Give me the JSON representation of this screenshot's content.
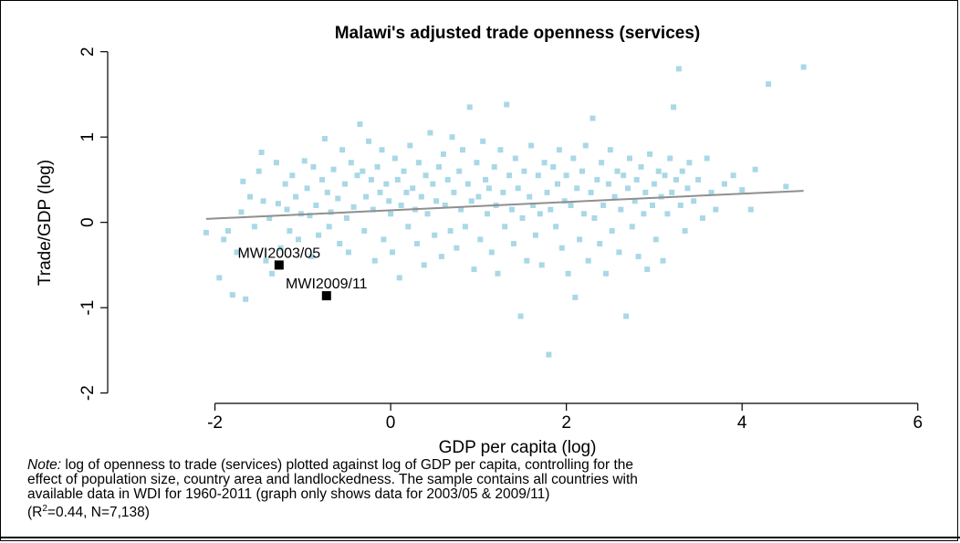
{
  "chart_data": {
    "type": "scatter",
    "title": "Malawi's adjusted trade openness (services)",
    "xlabel": "GDP per capita (log)",
    "ylabel": "Trade/GDP (log)",
    "xlim": [
      -3.2,
      6.2
    ],
    "ylim": [
      -2.1,
      2.05
    ],
    "xticks": [
      -2,
      0,
      2,
      4,
      6
    ],
    "xtick_labels": [
      "-2",
      "0",
      "2",
      "4",
      "6"
    ],
    "yticks": [
      -2,
      -1,
      0,
      1,
      2
    ],
    "ytick_labels": [
      "-2",
      "-1",
      "0",
      "1",
      "2"
    ],
    "grid": false,
    "colors": {
      "points": "#a9d8e6",
      "highlight": "#000000",
      "fit_line": "#8f8f8f"
    },
    "fit_line": {
      "x": [
        -2.1,
        4.7
      ],
      "y": [
        0.04,
        0.37
      ]
    },
    "series": [
      {
        "points": [
          [
            -2.1,
            -0.12
          ],
          [
            -1.95,
            -0.65
          ],
          [
            -1.9,
            -0.2
          ],
          [
            -1.85,
            -0.1
          ],
          [
            -1.8,
            -0.85
          ],
          [
            -1.75,
            -0.35
          ],
          [
            -1.7,
            0.12
          ],
          [
            -1.68,
            0.48
          ],
          [
            -1.65,
            -0.9
          ],
          [
            -1.6,
            0.3
          ],
          [
            -1.55,
            -0.05
          ],
          [
            -1.5,
            0.6
          ],
          [
            -1.47,
            0.82
          ],
          [
            -1.45,
            0.25
          ],
          [
            -1.42,
            -0.45
          ],
          [
            -1.38,
            0.05
          ],
          [
            -1.35,
            -0.6
          ],
          [
            -1.3,
            0.7
          ],
          [
            -1.28,
            0.22
          ],
          [
            -1.25,
            -0.3
          ],
          [
            -1.2,
            0.45
          ],
          [
            -1.18,
            0.15
          ],
          [
            -1.15,
            -0.1
          ],
          [
            -1.12,
            0.55
          ],
          [
            -1.08,
            0.3
          ],
          [
            -1.05,
            -0.2
          ],
          [
            -1.02,
            0.1
          ],
          [
            -0.98,
            0.72
          ],
          [
            -0.95,
            0.4
          ],
          [
            -0.92,
            0.08
          ],
          [
            -0.9,
            -0.4
          ],
          [
            -0.88,
            0.65
          ],
          [
            -0.85,
            0.2
          ],
          [
            -0.82,
            -0.15
          ],
          [
            -0.78,
            0.5
          ],
          [
            -0.75,
            0.98
          ],
          [
            -0.72,
            0.35
          ],
          [
            -0.7,
            -0.05
          ],
          [
            -0.68,
            0.12
          ],
          [
            -0.65,
            0.62
          ],
          [
            -0.6,
            0.28
          ],
          [
            -0.58,
            -0.25
          ],
          [
            -0.55,
            0.85
          ],
          [
            -0.52,
            0.45
          ],
          [
            -0.5,
            0.05
          ],
          [
            -0.48,
            -0.35
          ],
          [
            -0.45,
            0.7
          ],
          [
            -0.42,
            0.18
          ],
          [
            -0.38,
            0.55
          ],
          [
            -0.35,
            1.15
          ],
          [
            -0.32,
            0.6
          ],
          [
            -0.3,
            -0.1
          ],
          [
            -0.28,
            0.3
          ],
          [
            -0.25,
            0.95
          ],
          [
            -0.22,
            0.5
          ],
          [
            -0.2,
            0.15
          ],
          [
            -0.18,
            -0.45
          ],
          [
            -0.15,
            0.65
          ],
          [
            -0.12,
            0.35
          ],
          [
            -0.1,
            0.85
          ],
          [
            -0.08,
            -0.2
          ],
          [
            -0.05,
            0.45
          ],
          [
            -0.02,
            0.25
          ],
          [
            0.0,
            0.1
          ],
          [
            0.02,
            -0.35
          ],
          [
            0.05,
            0.75
          ],
          [
            0.08,
            0.5
          ],
          [
            0.1,
            -0.65
          ],
          [
            0.12,
            0.2
          ],
          [
            0.15,
            0.6
          ],
          [
            0.18,
            0.35
          ],
          [
            0.2,
            -0.05
          ],
          [
            0.22,
            0.9
          ],
          [
            0.25,
            0.4
          ],
          [
            0.28,
            0.15
          ],
          [
            0.3,
            -0.25
          ],
          [
            0.32,
            0.7
          ],
          [
            0.35,
            0.3
          ],
          [
            0.38,
            -0.5
          ],
          [
            0.4,
            0.55
          ],
          [
            0.42,
            0.1
          ],
          [
            0.45,
            1.05
          ],
          [
            0.48,
            0.45
          ],
          [
            0.5,
            -0.15
          ],
          [
            0.52,
            0.25
          ],
          [
            0.55,
            0.65
          ],
          [
            0.58,
            -0.4
          ],
          [
            0.6,
            0.8
          ],
          [
            0.62,
            0.2
          ],
          [
            0.65,
            0.5
          ],
          [
            0.68,
            -0.1
          ],
          [
            0.7,
            1.0
          ],
          [
            0.72,
            0.35
          ],
          [
            0.75,
            -0.3
          ],
          [
            0.78,
            0.6
          ],
          [
            0.8,
            0.15
          ],
          [
            0.82,
            0.85
          ],
          [
            0.85,
            -0.05
          ],
          [
            0.88,
            0.45
          ],
          [
            0.9,
            1.35
          ],
          [
            0.92,
            0.25
          ],
          [
            0.95,
            -0.55
          ],
          [
            0.98,
            0.7
          ],
          [
            1.0,
            0.3
          ],
          [
            1.02,
            -0.2
          ],
          [
            1.05,
            0.95
          ],
          [
            1.08,
            0.5
          ],
          [
            1.1,
            0.1
          ],
          [
            1.12,
            0.4
          ],
          [
            1.15,
            -0.35
          ],
          [
            1.18,
            0.65
          ],
          [
            1.2,
            0.2
          ],
          [
            1.22,
            -0.6
          ],
          [
            1.25,
            0.85
          ],
          [
            1.28,
            0.35
          ],
          [
            1.3,
            -0.05
          ],
          [
            1.32,
            1.38
          ],
          [
            1.35,
            0.55
          ],
          [
            1.38,
            0.15
          ],
          [
            1.4,
            -0.25
          ],
          [
            1.42,
            0.75
          ],
          [
            1.45,
            0.4
          ],
          [
            1.48,
            -1.1
          ],
          [
            1.5,
            0.05
          ],
          [
            1.52,
            0.6
          ],
          [
            1.55,
            -0.45
          ],
          [
            1.58,
            0.3
          ],
          [
            1.6,
            0.9
          ],
          [
            1.62,
            0.2
          ],
          [
            1.65,
            -0.15
          ],
          [
            1.68,
            0.55
          ],
          [
            1.7,
            0.1
          ],
          [
            1.72,
            -0.5
          ],
          [
            1.75,
            0.7
          ],
          [
            1.78,
            0.35
          ],
          [
            1.8,
            -1.55
          ],
          [
            1.82,
            0.15
          ],
          [
            1.85,
            0.65
          ],
          [
            1.88,
            -0.05
          ],
          [
            1.9,
            0.45
          ],
          [
            1.92,
            0.85
          ],
          [
            1.95,
            -0.3
          ],
          [
            1.98,
            0.25
          ],
          [
            2.0,
            0.55
          ],
          [
            2.02,
            -0.6
          ],
          [
            2.05,
            0.2
          ],
          [
            2.08,
            0.75
          ],
          [
            2.1,
            -0.88
          ],
          [
            2.12,
            0.4
          ],
          [
            2.15,
            -0.2
          ],
          [
            2.18,
            0.6
          ],
          [
            2.2,
            0.1
          ],
          [
            2.22,
            0.9
          ],
          [
            2.25,
            -0.45
          ],
          [
            2.28,
            0.35
          ],
          [
            2.3,
            1.22
          ],
          [
            2.32,
            0.05
          ],
          [
            2.35,
            0.5
          ],
          [
            2.38,
            -0.25
          ],
          [
            2.4,
            0.7
          ],
          [
            2.42,
            0.2
          ],
          [
            2.45,
            -0.6
          ],
          [
            2.48,
            0.45
          ],
          [
            2.5,
            0.85
          ],
          [
            2.52,
            -0.1
          ],
          [
            2.55,
            0.3
          ],
          [
            2.58,
            0.6
          ],
          [
            2.6,
            -0.35
          ],
          [
            2.62,
            0.15
          ],
          [
            2.65,
            0.55
          ],
          [
            2.68,
            -1.1
          ],
          [
            2.7,
            0.4
          ],
          [
            2.72,
            0.75
          ],
          [
            2.75,
            -0.05
          ],
          [
            2.78,
            0.25
          ],
          [
            2.8,
            0.5
          ],
          [
            2.82,
            -0.4
          ],
          [
            2.85,
            0.65
          ],
          [
            2.88,
            0.1
          ],
          [
            2.9,
            0.35
          ],
          [
            2.92,
            -0.55
          ],
          [
            2.95,
            0.8
          ],
          [
            2.98,
            0.2
          ],
          [
            3.0,
            0.45
          ],
          [
            3.02,
            -0.2
          ],
          [
            3.05,
            0.6
          ],
          [
            3.08,
            0.3
          ],
          [
            3.1,
            -0.45
          ],
          [
            3.12,
            0.55
          ],
          [
            3.15,
            0.1
          ],
          [
            3.18,
            0.75
          ],
          [
            3.2,
            0.35
          ],
          [
            3.22,
            1.35
          ],
          [
            3.25,
            0.5
          ],
          [
            3.28,
            1.8
          ],
          [
            3.3,
            0.2
          ],
          [
            3.32,
            0.6
          ],
          [
            3.35,
            -0.1
          ],
          [
            3.38,
            0.4
          ],
          [
            3.4,
            0.7
          ],
          [
            3.45,
            0.25
          ],
          [
            3.5,
            0.5
          ],
          [
            3.55,
            0.05
          ],
          [
            3.6,
            0.75
          ],
          [
            3.65,
            0.35
          ],
          [
            3.7,
            0.15
          ],
          [
            3.8,
            0.45
          ],
          [
            3.9,
            0.55
          ],
          [
            4.0,
            0.38
          ],
          [
            4.1,
            0.15
          ],
          [
            4.15,
            0.62
          ],
          [
            4.3,
            1.62
          ],
          [
            4.5,
            0.42
          ],
          [
            4.7,
            1.82
          ]
        ]
      }
    ],
    "highlights": [
      {
        "label": "MWI2003/05",
        "x": -1.27,
        "y": -0.5
      },
      {
        "label": "MWI2009/11",
        "x": -0.73,
        "y": -0.86
      }
    ]
  },
  "note": {
    "label": "Note:",
    "line1": " log of openness to trade (services) plotted against log of GDP per capita, controlling for the",
    "line2": "effect of population size, country area and landlockedness. The sample contains all countries with",
    "line3": "available data in WDI for 1960-2011 (graph only shows data for 2003/05 & 2009/11)",
    "line4_prefix": "(R",
    "line4_sup": "2",
    "line4_suffix": "=0.44, N=7,138)"
  }
}
